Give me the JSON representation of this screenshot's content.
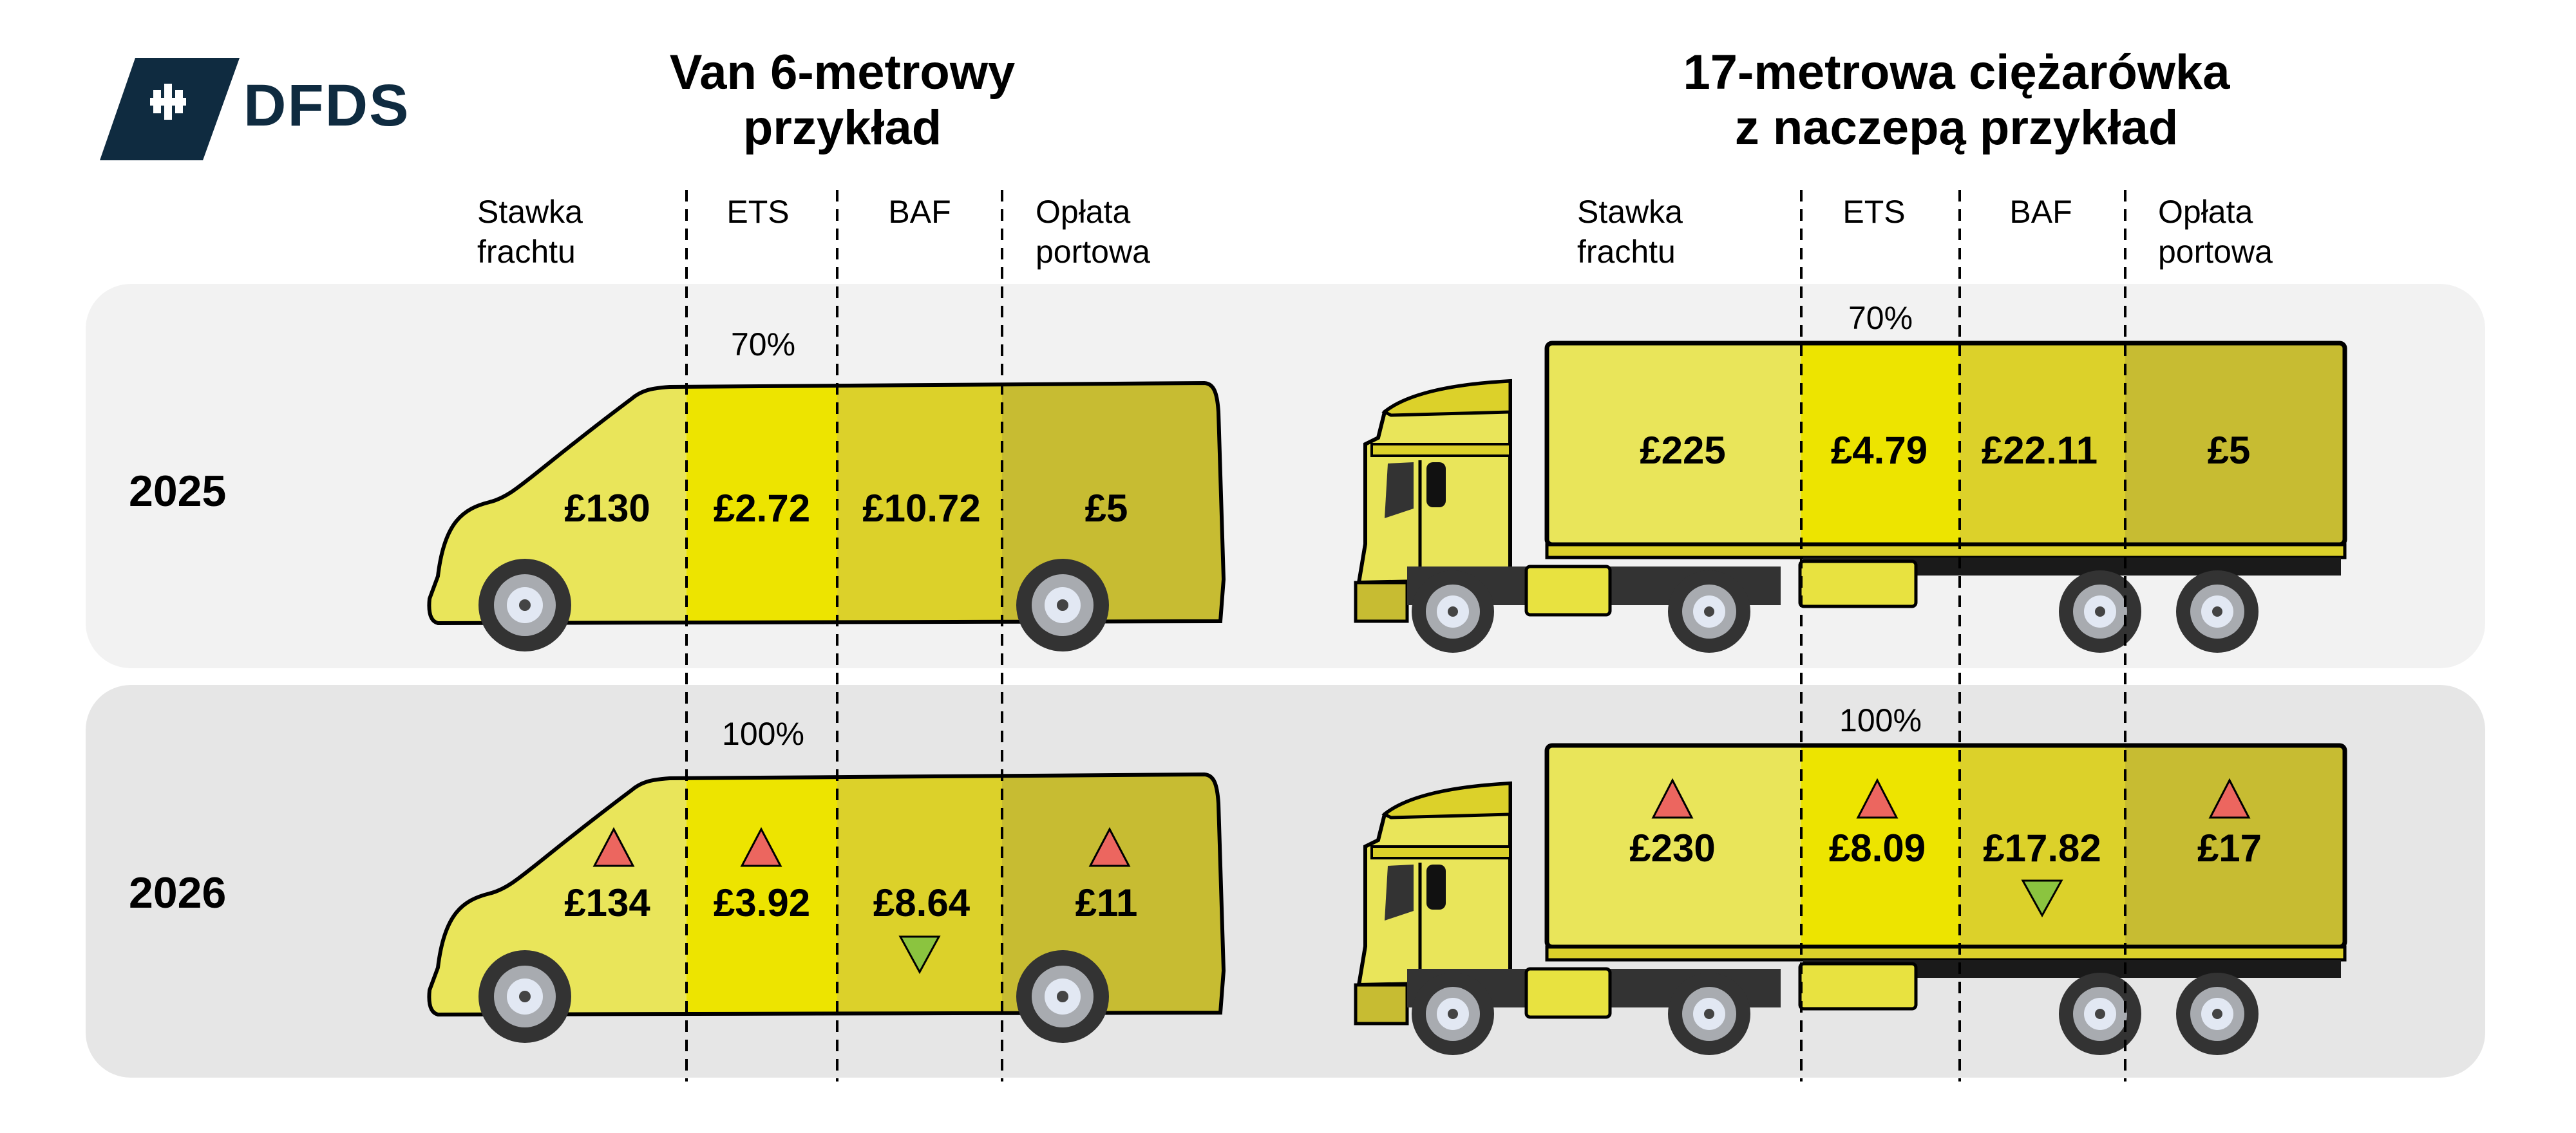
{
  "logo": {
    "text": "DFDS"
  },
  "van": {
    "title_line1": "Van 6-metrowy",
    "title_line2": "przykład",
    "headers": {
      "freight_1": "Stawka",
      "freight_2": "frachtu",
      "ets": "ETS",
      "baf": "BAF",
      "port_1": "Opłata",
      "port_2": "portowa"
    },
    "y2025": {
      "ets_pct": "70%",
      "freight": "£130",
      "ets": "£2.72",
      "baf": "£10.72",
      "port": "£5"
    },
    "y2026": {
      "ets_pct": "100%",
      "freight": "£134",
      "ets": "£3.92",
      "baf": "£8.64",
      "port": "£11"
    }
  },
  "truck": {
    "title_line1": "17-metrowa ciężarówka",
    "title_line2": "z naczepą przykład",
    "headers": {
      "freight_1": "Stawka",
      "freight_2": "frachtu",
      "ets": "ETS",
      "baf": "BAF",
      "port_1": "Opłata",
      "port_2": "portowa"
    },
    "y2025": {
      "ets_pct": "70%",
      "freight": "£225",
      "ets": "£4.79",
      "baf": "£22.11",
      "port": "£5"
    },
    "y2026": {
      "ets_pct": "100%",
      "freight": "£230",
      "ets": "£8.09",
      "baf": "£17.82",
      "port": "£17"
    }
  },
  "years": {
    "row1": "2025",
    "row2": "2026"
  },
  "trends_2026": {
    "freight": "up",
    "ets": "up",
    "baf": "down",
    "port": "up"
  },
  "colors": {
    "freight": "#E9E55A",
    "ets": "#EDE400",
    "baf": "#DCD12A",
    "port": "#C7BC32",
    "up": "#EC665F",
    "down": "#8BC43F",
    "brand": "#0F2B40"
  }
}
